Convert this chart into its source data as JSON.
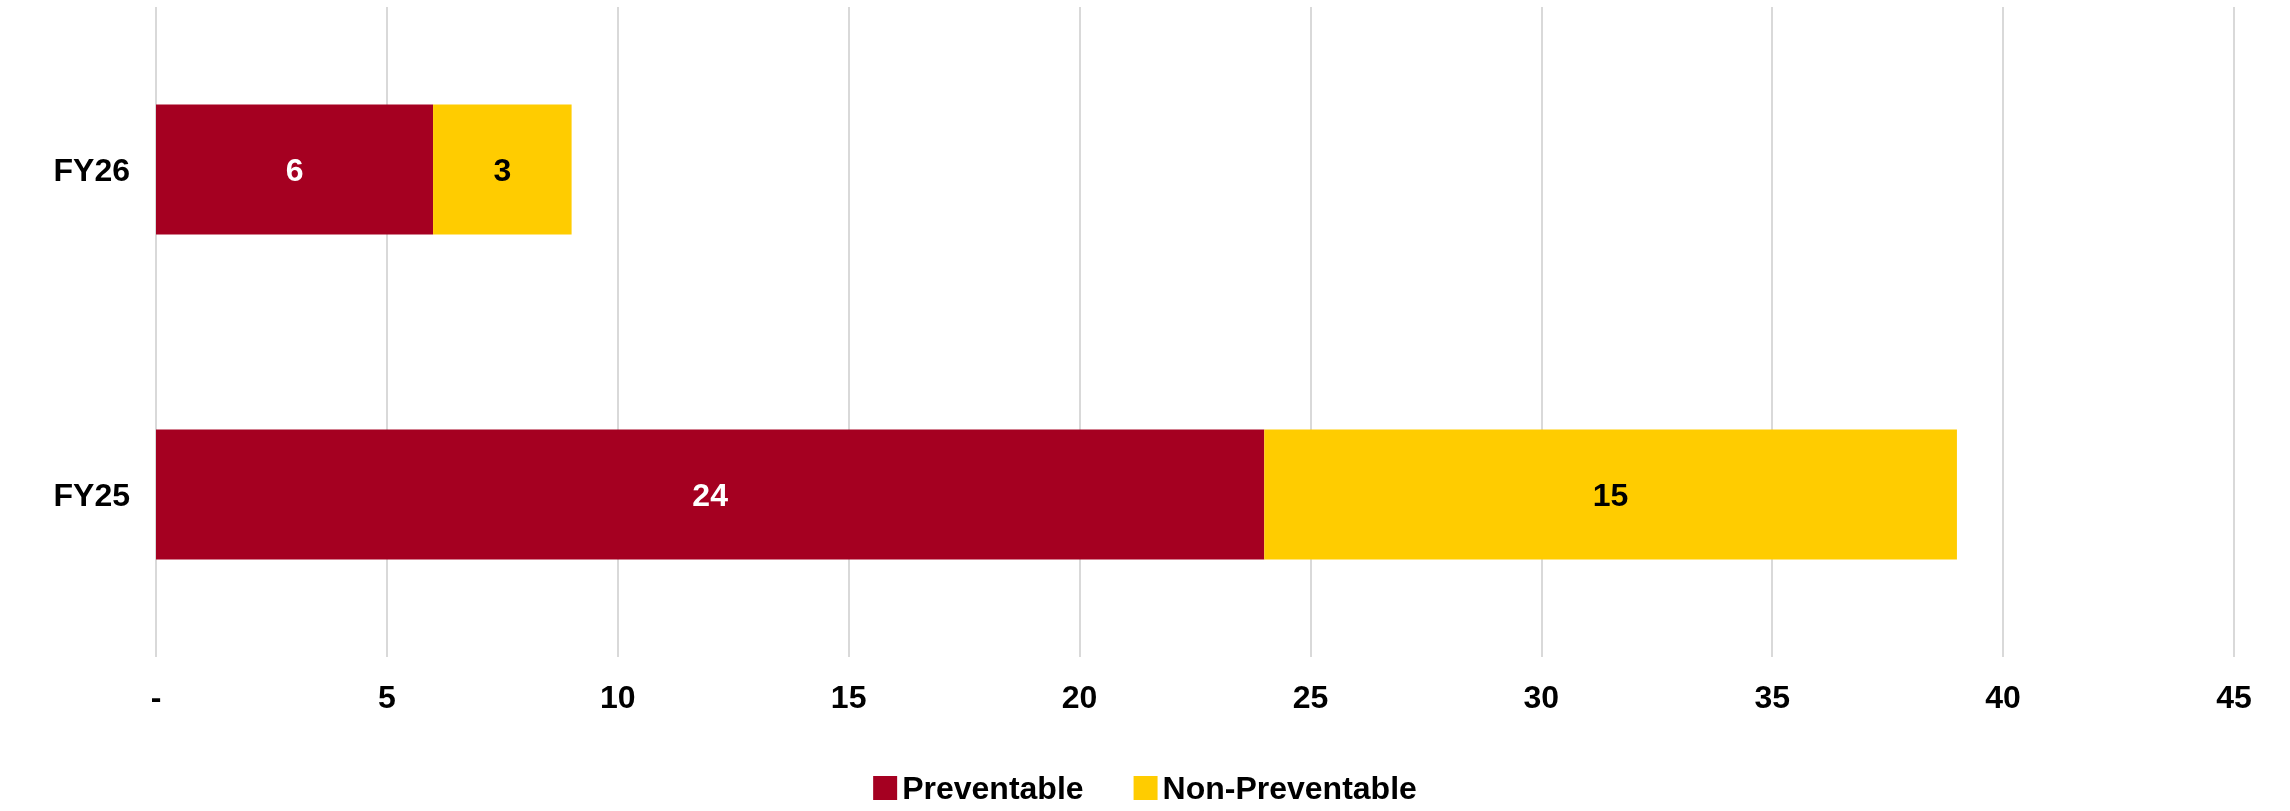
{
  "chart_data": {
    "type": "bar",
    "orientation": "horizontal",
    "stacked": true,
    "categories": [
      "FY26",
      "FY25"
    ],
    "series": [
      {
        "name": "Preventable",
        "color": "#a50021",
        "values": [
          6,
          24
        ]
      },
      {
        "name": "Non-Preventable",
        "color": "#ffcc00",
        "values": [
          3,
          15
        ]
      }
    ],
    "xlim": [
      0,
      45
    ],
    "xticks": [
      {
        "value": 0,
        "label": "-"
      },
      5,
      10,
      15,
      20,
      25,
      30,
      35,
      40,
      45
    ],
    "grid": "x",
    "legend": "bottom",
    "data_labels": true
  }
}
